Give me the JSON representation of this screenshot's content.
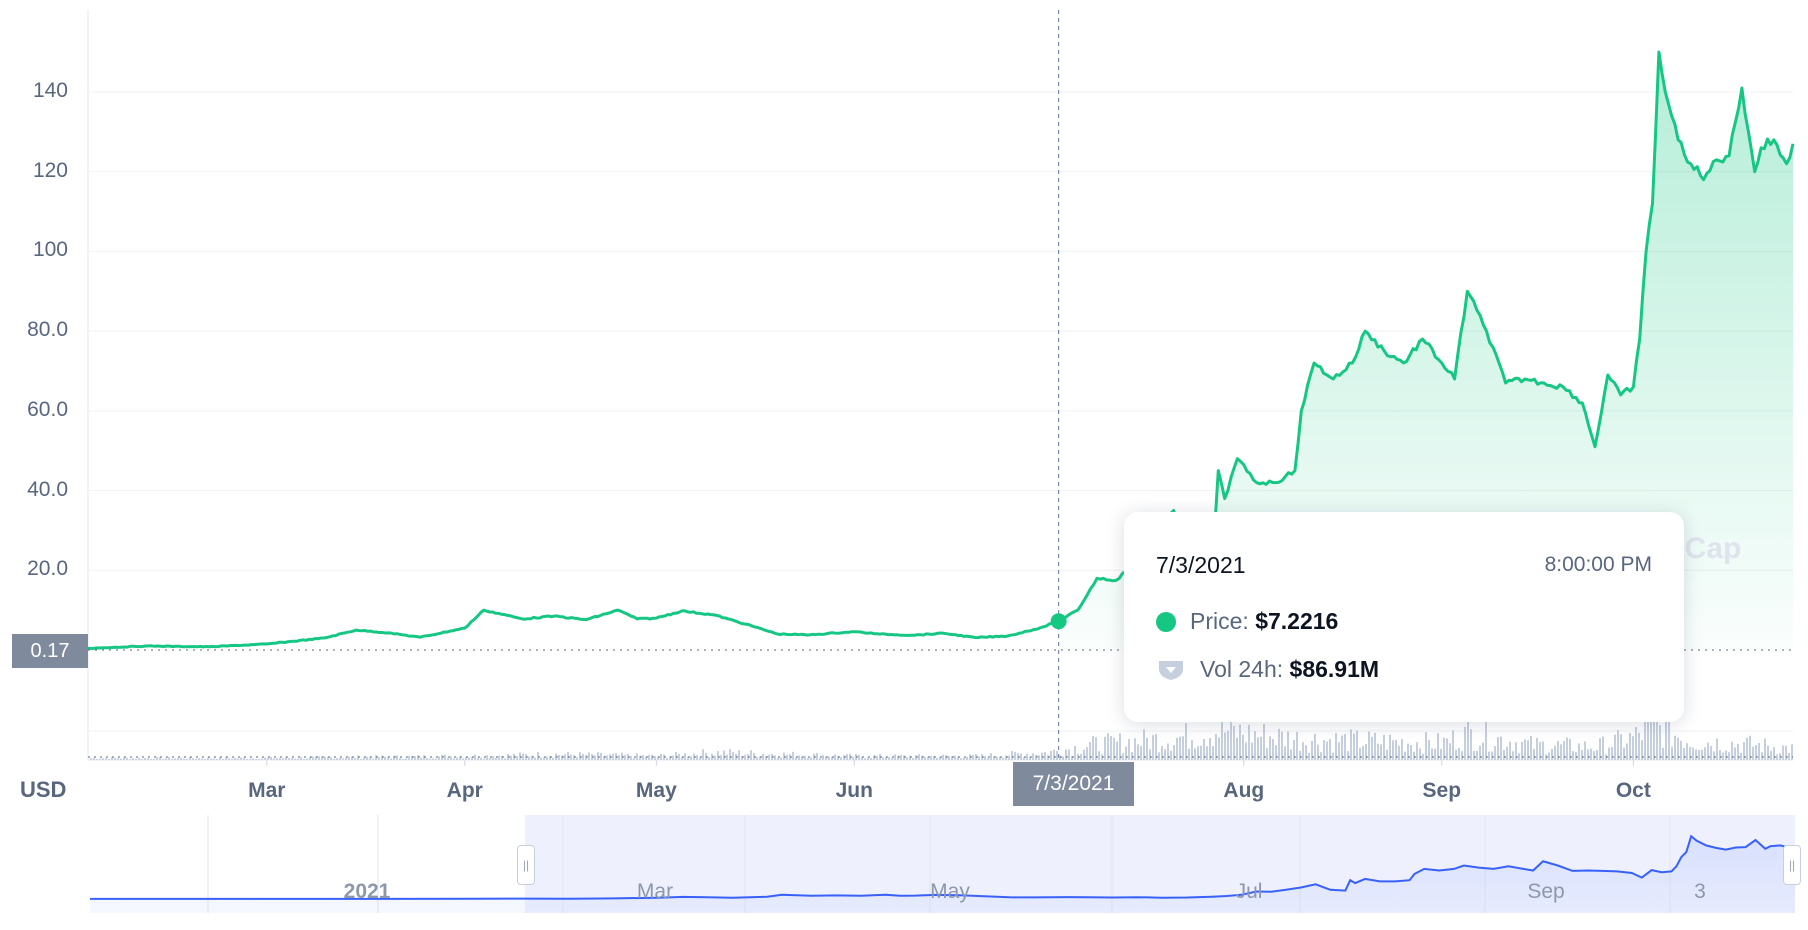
{
  "colors": {
    "line": "#16c784",
    "volume": "#c6cfde",
    "navigator_line": "#3861fb",
    "navigator_bg": "#eef1fd",
    "axis_text": "#58667e"
  },
  "axis": {
    "currency": "USD",
    "reference_value": "0.17",
    "hover_date": "7/3/2021"
  },
  "tooltip": {
    "date": "7/3/2021",
    "time": "8:00:00 PM",
    "price_label": "Price:",
    "price_value": "$7.2216",
    "vol_label": "Vol 24h:",
    "vol_value": "$86.91M",
    "price_icon": "green-dot-icon",
    "vol_icon": "shield-icon"
  },
  "watermark": "etCap",
  "navigator": {
    "labels": [
      "2021",
      "Mar",
      "May",
      "Jul",
      "Sep",
      "3"
    ],
    "handle_icon": "drag-handle-icon"
  },
  "chart_data": {
    "type": "line",
    "title": "",
    "xlabel": "",
    "ylabel": "USD",
    "ylim": [
      0,
      160
    ],
    "yticks": [
      "20.0",
      "40.0",
      "60.0",
      "80.0",
      "100",
      "120",
      "140"
    ],
    "xticks": [
      "Mar",
      "Apr",
      "May",
      "Jun",
      "Jul",
      "Aug",
      "Sep",
      "Oct"
    ],
    "grid": true,
    "series": [
      {
        "x": [
          "2021-02-01",
          "2021-02-10",
          "2021-02-20",
          "2021-03-01",
          "2021-03-10",
          "2021-03-15",
          "2021-03-20",
          "2021-03-25",
          "2021-04-01",
          "2021-04-04",
          "2021-04-10",
          "2021-04-15",
          "2021-04-20",
          "2021-04-25",
          "2021-04-28",
          "2021-05-01",
          "2021-05-05",
          "2021-05-10",
          "2021-05-15",
          "2021-05-20",
          "2021-05-25",
          "2021-06-01",
          "2021-06-05",
          "2021-06-10",
          "2021-06-15",
          "2021-06-20",
          "2021-06-25",
          "2021-06-30",
          "2021-07-03",
          "2021-07-06",
          "2021-07-09",
          "2021-07-12",
          "2021-07-15",
          "2021-07-18",
          "2021-07-21",
          "2021-07-24",
          "2021-07-27",
          "2021-07-28",
          "2021-07-29",
          "2021-07-31",
          "2021-08-03",
          "2021-08-06",
          "2021-08-09",
          "2021-08-10",
          "2021-08-12",
          "2021-08-15",
          "2021-08-18",
          "2021-08-20",
          "2021-08-23",
          "2021-08-26",
          "2021-08-29",
          "2021-09-01",
          "2021-09-03",
          "2021-09-05",
          "2021-09-08",
          "2021-09-11",
          "2021-09-14",
          "2021-09-17",
          "2021-09-20",
          "2021-09-23",
          "2021-09-25",
          "2021-09-27",
          "2021-09-29",
          "2021-10-01",
          "2021-10-02",
          "2021-10-03",
          "2021-10-04",
          "2021-10-05",
          "2021-10-06",
          "2021-10-08",
          "2021-10-10",
          "2021-10-12",
          "2021-10-14",
          "2021-10-16",
          "2021-10-18",
          "2021-10-20",
          "2021-10-21",
          "2021-10-23",
          "2021-10-25",
          "2021-10-26"
        ],
        "values": [
          0.4,
          1.0,
          0.8,
          1.5,
          3.0,
          5.0,
          4.3,
          3.2,
          5.5,
          10.0,
          7.8,
          8.5,
          7.6,
          10.0,
          7.8,
          8.0,
          9.8,
          8.8,
          6.5,
          4.0,
          3.8,
          4.6,
          4.0,
          3.7,
          4.2,
          3.1,
          3.5,
          5.5,
          7.2,
          10.0,
          18.0,
          17.5,
          22.0,
          27.5,
          35.0,
          22.0,
          20.0,
          45.0,
          38.0,
          48.0,
          42.0,
          42.0,
          45.0,
          60.0,
          72.0,
          68.0,
          72.0,
          80.0,
          75.0,
          72.0,
          78.0,
          72.0,
          68.0,
          90.0,
          80.0,
          67.0,
          68.0,
          67.0,
          66.0,
          62.0,
          51.0,
          69.0,
          64.0,
          66.0,
          78.0,
          100.0,
          112.0,
          150.0,
          140.0,
          128.0,
          122.0,
          118.0,
          123.0,
          124.0,
          141.0,
          120.0,
          126.0,
          128.0,
          122.0,
          127.0
        ]
      }
    ],
    "volume": {
      "x": [
        "2021-02-01",
        "2021-03-01",
        "2021-04-01",
        "2021-04-15",
        "2021-05-01",
        "2021-05-10",
        "2021-06-01",
        "2021-06-20",
        "2021-07-01",
        "2021-07-08",
        "2021-07-15",
        "2021-07-22",
        "2021-07-28",
        "2021-08-01",
        "2021-08-10",
        "2021-08-20",
        "2021-09-01",
        "2021-09-05",
        "2021-09-15",
        "2021-09-25",
        "2021-10-01",
        "2021-10-04",
        "2021-10-10",
        "2021-10-20",
        "2021-10-26"
      ],
      "values": [
        1,
        1,
        2,
        3,
        2,
        4,
        2,
        2,
        4,
        8,
        10,
        12,
        16,
        14,
        11,
        10,
        9,
        14,
        8,
        7,
        12,
        18,
        10,
        8,
        6
      ]
    }
  }
}
